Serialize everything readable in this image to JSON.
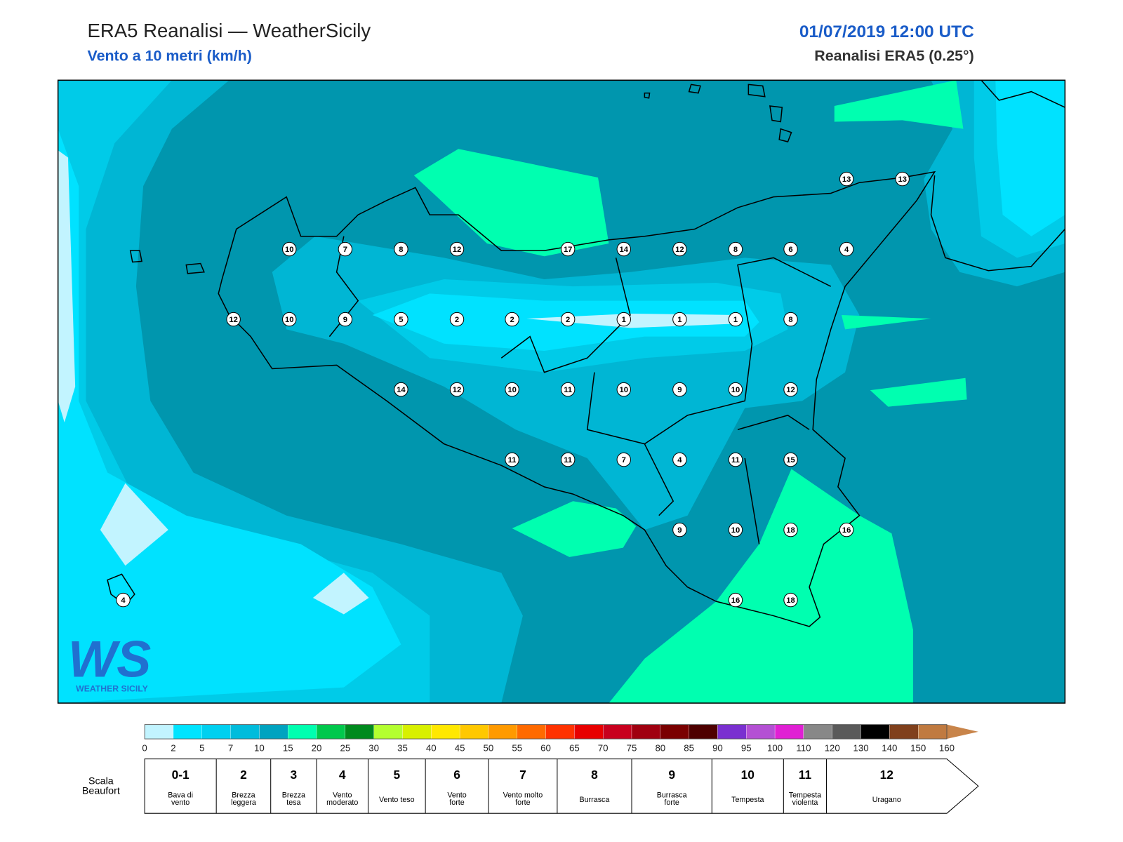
{
  "header": {
    "title": "ERA5 Reanalisi — WeatherSicily",
    "subtitle": "Vento a 10 metri (km/h)",
    "date": "01/07/2019 12:00 UTC",
    "source": "Reanalisi ERA5 (0.25°)"
  },
  "logo": {
    "mark": "WS",
    "text": "WEATHER SICILY"
  },
  "stations": [
    "13",
    "13",
    "10",
    "7",
    "8",
    "12",
    "17",
    "14",
    "12",
    "8",
    "6",
    "4",
    "12",
    "10",
    "9",
    "5",
    "2",
    "2",
    "2",
    "1",
    "1",
    "1",
    "8",
    "14",
    "12",
    "10",
    "11",
    "10",
    "9",
    "10",
    "12",
    "11",
    "11",
    "7",
    "4",
    "11",
    "15",
    "9",
    "10",
    "18",
    "16",
    "16",
    "18",
    "4"
  ],
  "colorbar": {
    "ticks": [
      0,
      2,
      5,
      7,
      10,
      15,
      20,
      25,
      30,
      35,
      40,
      45,
      50,
      55,
      60,
      65,
      70,
      75,
      80,
      85,
      90,
      95,
      100,
      110,
      120,
      130,
      140,
      150,
      160
    ],
    "colors": [
      "#c2f4ff",
      "#00e4ff",
      "#00d0f0",
      "#00bcdc",
      "#00a3c0",
      "#00ffb0",
      "#00c84c",
      "#008a1e",
      "#b4ff30",
      "#d8f000",
      "#ffe800",
      "#ffc800",
      "#ff9a00",
      "#ff6a00",
      "#ff3200",
      "#e80000",
      "#c8001e",
      "#a00010",
      "#7a0000",
      "#4e0000",
      "#7a30d0",
      "#b450d4",
      "#e020d4",
      "#888888",
      "#5a5a5a",
      "#000000",
      "#80401c",
      "#c07a40",
      "#c8844a"
    ]
  },
  "beaufort": {
    "label": [
      "Scala",
      "Beaufort"
    ],
    "levels": [
      {
        "force": "0-1",
        "desc": [
          "Bava di",
          "vento"
        ]
      },
      {
        "force": "2",
        "desc": [
          "Brezza",
          "leggera"
        ]
      },
      {
        "force": "3",
        "desc": [
          "Brezza",
          "tesa"
        ]
      },
      {
        "force": "4",
        "desc": [
          "Vento",
          "moderato"
        ]
      },
      {
        "force": "5",
        "desc": [
          "Vento teso"
        ]
      },
      {
        "force": "6",
        "desc": [
          "Vento",
          "forte"
        ]
      },
      {
        "force": "7",
        "desc": [
          "Vento molto",
          "forte"
        ]
      },
      {
        "force": "8",
        "desc": [
          "Burrasca"
        ]
      },
      {
        "force": "9",
        "desc": [
          "Burrasca",
          "forte"
        ]
      },
      {
        "force": "10",
        "desc": [
          "Tempesta"
        ]
      },
      {
        "force": "11",
        "desc": [
          "Tempesta",
          "violenta"
        ]
      },
      {
        "force": "12",
        "desc": [
          "Uragano"
        ]
      }
    ]
  }
}
